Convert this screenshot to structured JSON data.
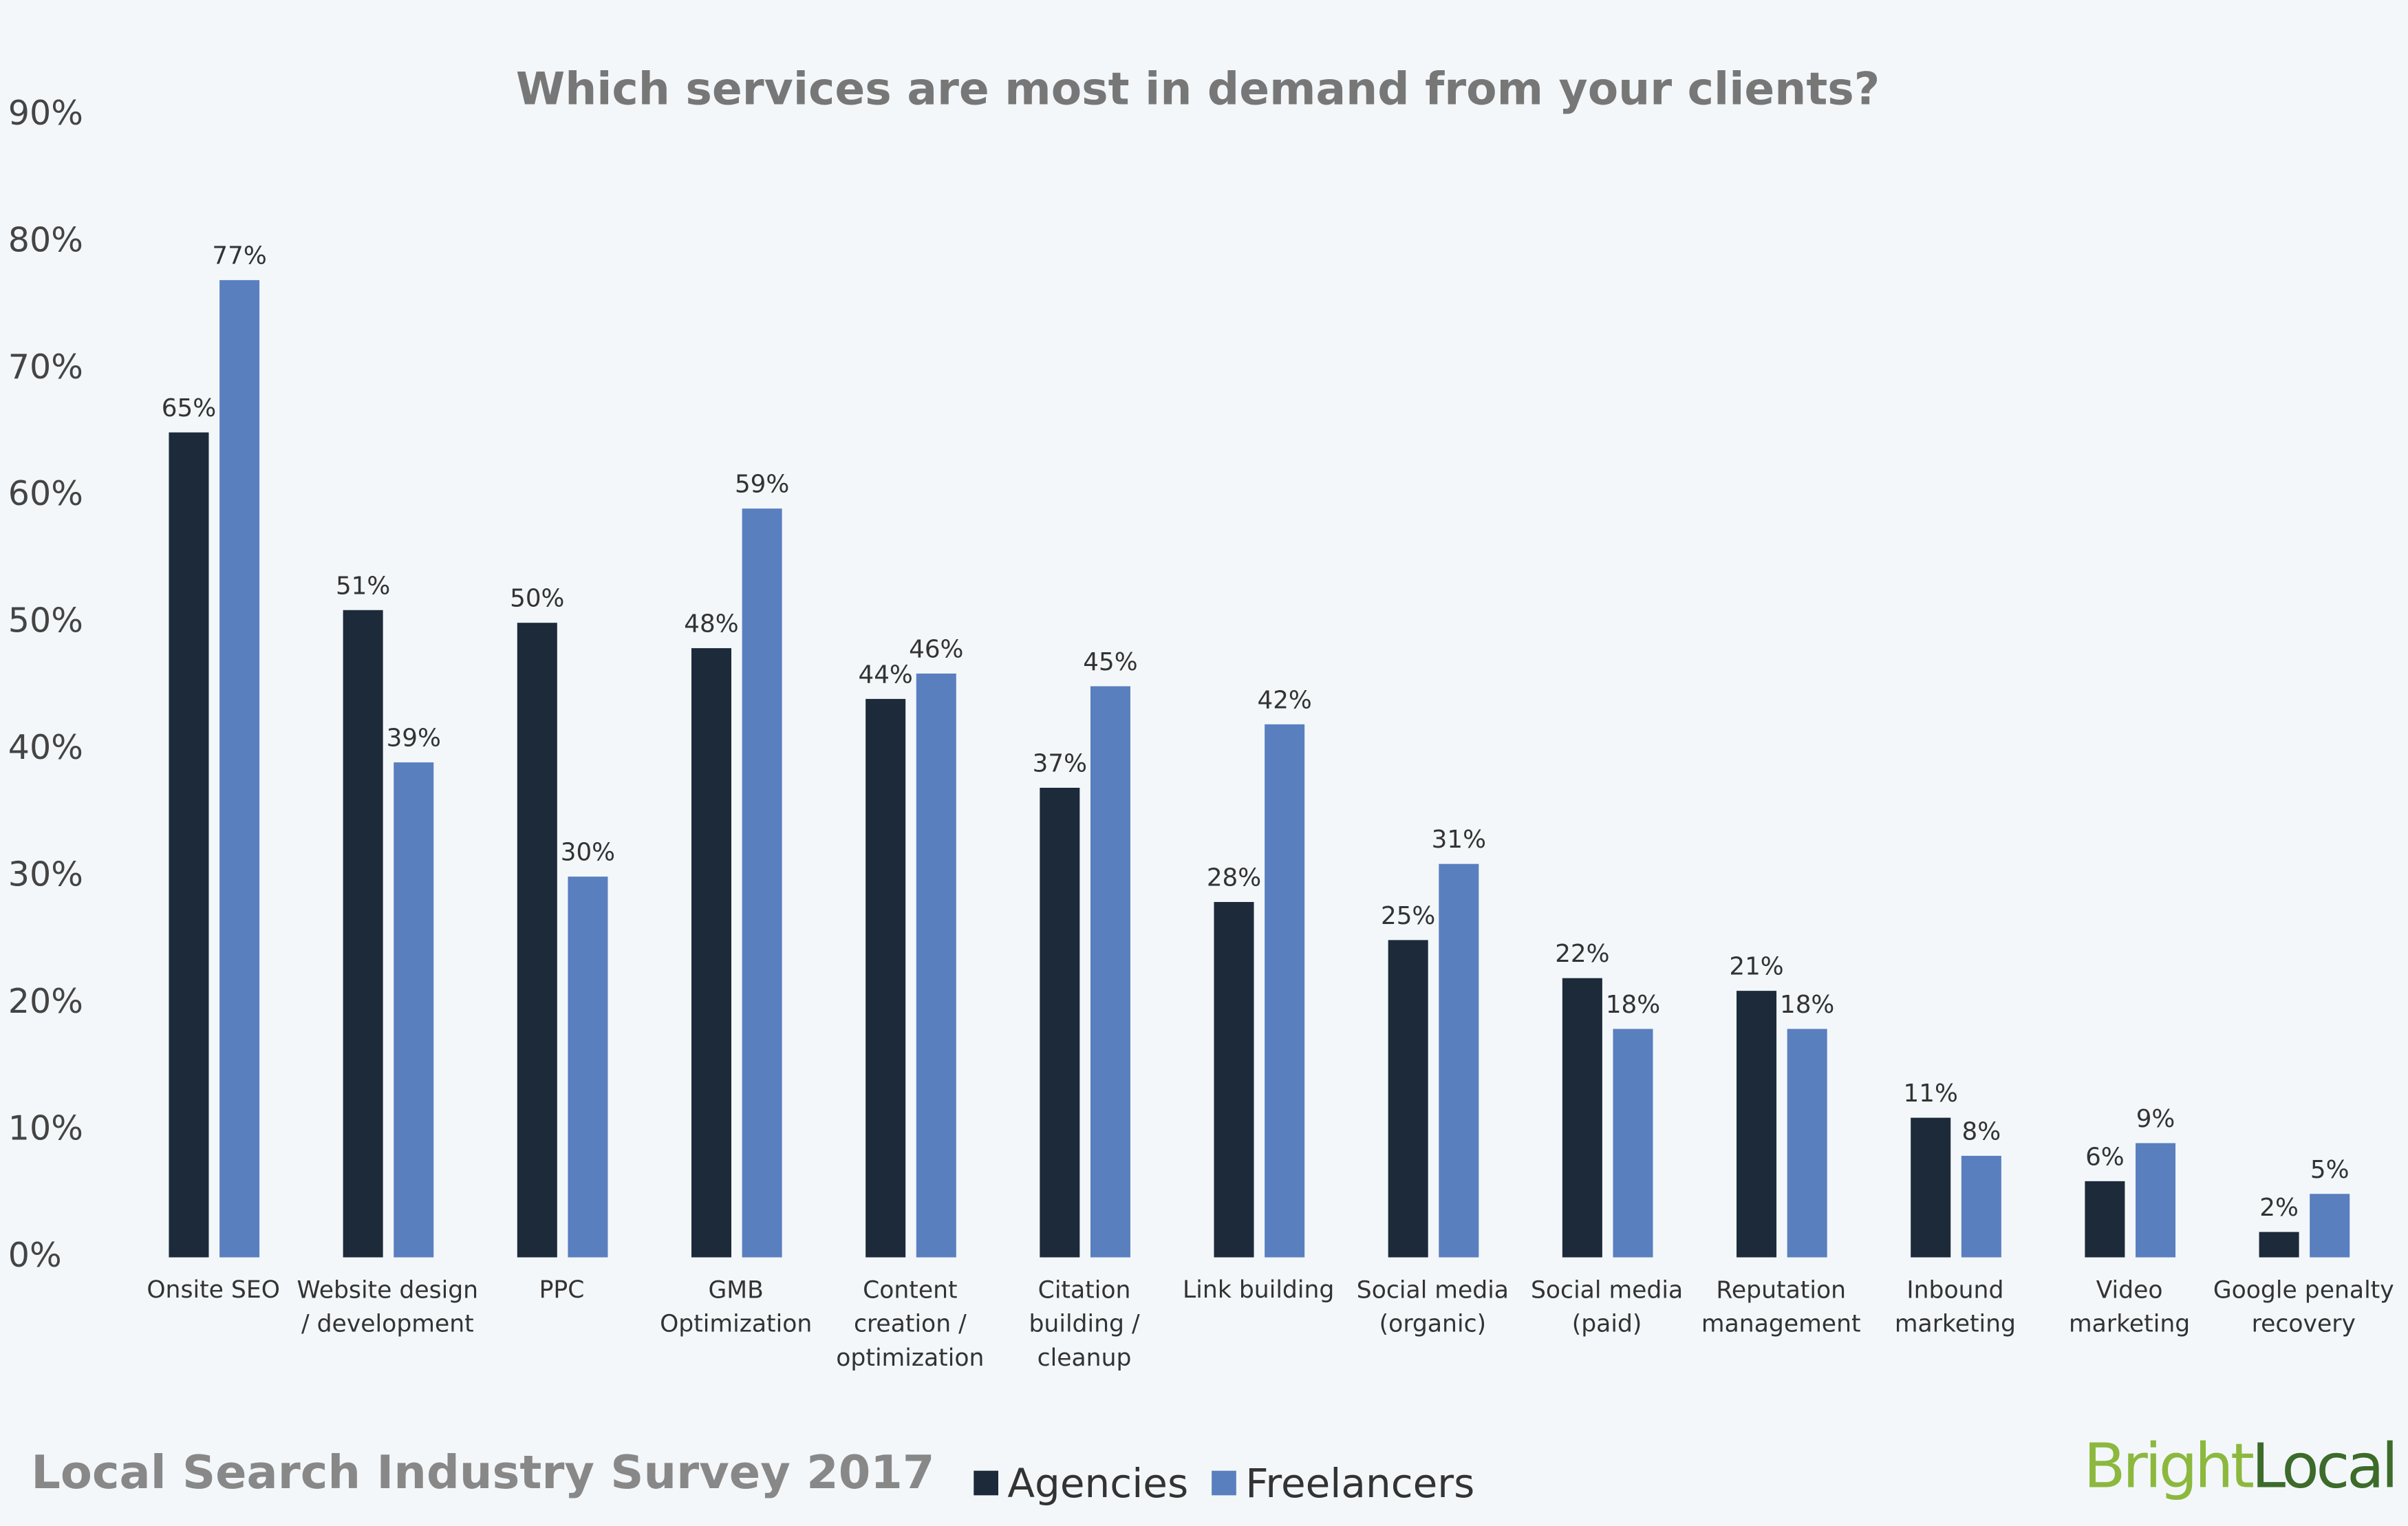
{
  "chart_data": {
    "type": "bar",
    "title": "Which services are most in demand from your clients?",
    "footer": "Local Search Industry Survey 2017",
    "brand": [
      "Bright",
      "Local"
    ],
    "categories": [
      "Onsite SEO",
      "Website design\n/ development",
      "PPC",
      "GMB\nOptimization",
      "Content\ncreation /\noptimization",
      "Citation\nbuilding /\ncleanup",
      "Link building",
      "Social media\n(organic)",
      "Social media\n(paid)",
      "Reputation\nmanagement",
      "Inbound\nmarketing",
      "Video\nmarketing",
      "Google penalty\nrecovery"
    ],
    "series": [
      {
        "name": "Agencies",
        "color": "#1c2a3a",
        "values": [
          65,
          51,
          50,
          48,
          44,
          37,
          28,
          25,
          22,
          21,
          11,
          6,
          2
        ],
        "value_labels": [
          "65%",
          "51%",
          "50%",
          "48%",
          "44%",
          "37%",
          "28%",
          "25%",
          "22%",
          "21%",
          "11%",
          "6%",
          "2%"
        ]
      },
      {
        "name": "Freelancers",
        "color": "#5a7fbf",
        "values": [
          77,
          39,
          30,
          59,
          46,
          45,
          42,
          31,
          18,
          18,
          8,
          9,
          5
        ],
        "value_labels": [
          "77%",
          "39%",
          "30%",
          "59%",
          "46%",
          "45%",
          "42%",
          "31%",
          "18%",
          "18%",
          "8%",
          "9%",
          "5%"
        ]
      }
    ],
    "ylim": [
      0,
      90
    ],
    "yticks": [
      {
        "value": 0,
        "label": "0%"
      },
      {
        "value": 10,
        "label": "10%"
      },
      {
        "value": 20,
        "label": "20%"
      },
      {
        "value": 30,
        "label": "30%"
      },
      {
        "value": 40,
        "label": "40%"
      },
      {
        "value": 50,
        "label": "50%"
      },
      {
        "value": 60,
        "label": "60%"
      },
      {
        "value": 70,
        "label": "70%"
      },
      {
        "value": 80,
        "label": "80%"
      },
      {
        "value": 90,
        "label": "90%"
      }
    ],
    "legend": "bottom"
  }
}
